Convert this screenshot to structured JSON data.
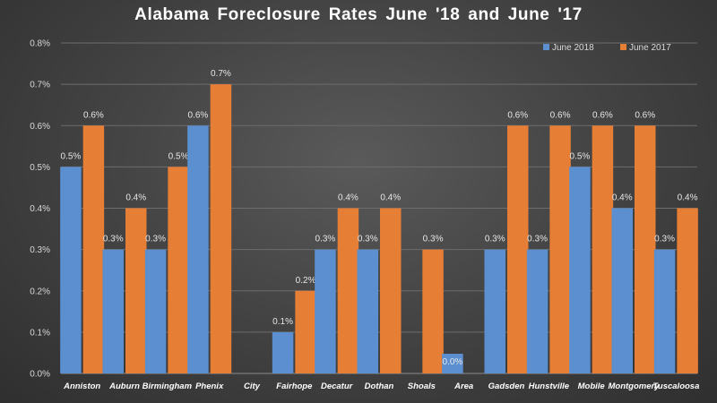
{
  "chart_data": {
    "type": "bar",
    "title": "Alabama  Foreclosure  Rates June '18 and June '17",
    "categories": [
      "Anniston",
      "Auburn",
      "Birmingham",
      "Phenix",
      "City",
      "Fairhope",
      "Decatur",
      "Dothan",
      "Shoals",
      "Area",
      "Gadsden",
      "Hunstville",
      "Mobile",
      "Montgomery",
      "Tuscaloosa"
    ],
    "series": [
      {
        "name": "June 2018",
        "values": [
          0.5,
          0.3,
          0.3,
          0.6,
          null,
          0.1,
          0.3,
          0.3,
          null,
          0.0,
          0.3,
          0.3,
          0.5,
          0.4,
          0.3
        ],
        "labels": [
          "0.5%",
          "0.3%",
          "0.3%",
          "0.6%",
          null,
          "0.1%",
          "0.3%",
          "0.3%",
          null,
          "0.0%",
          "0.3%",
          "0.3%",
          "0.5%",
          "0.4%",
          "0.3%"
        ],
        "color": "#5b8fd0"
      },
      {
        "name": "June 2017",
        "values": [
          0.6,
          0.4,
          0.5,
          0.7,
          null,
          0.2,
          0.4,
          0.4,
          0.3,
          null,
          0.6,
          0.6,
          0.6,
          0.6,
          0.4
        ],
        "labels": [
          "0.6%",
          "0.4%",
          "0.5%",
          "0.7%",
          null,
          "0.2%",
          "0.4%",
          "0.4%",
          "0.3%",
          null,
          "0.6%",
          "0.6%",
          "0.6%",
          "0.6%",
          "0.4%"
        ],
        "color": "#e67e35"
      }
    ],
    "ylim": [
      0,
      0.8
    ],
    "yticks": [
      "0.0%",
      "0.1%",
      "0.2%",
      "0.3%",
      "0.4%",
      "0.5%",
      "0.6%",
      "0.7%",
      "0.8%"
    ],
    "grid": true,
    "legend_position": "top-right"
  }
}
